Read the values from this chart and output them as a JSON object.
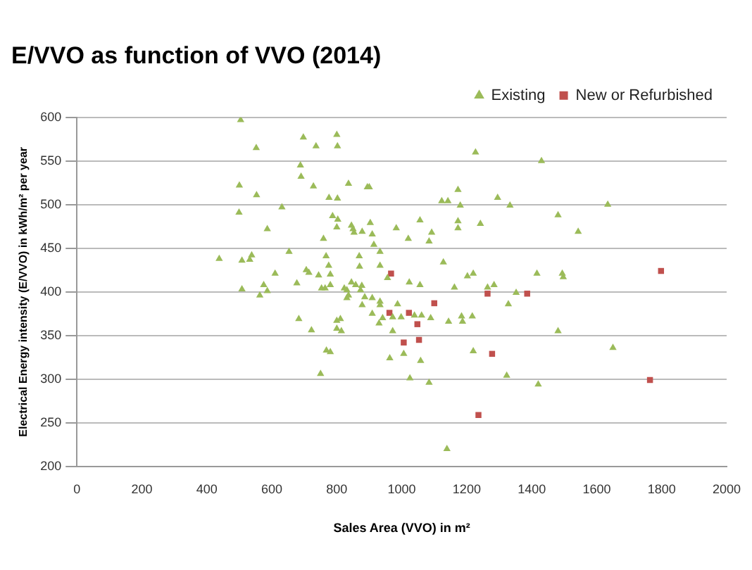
{
  "chart_data": {
    "type": "scatter",
    "title": "E/VVO as function of VVO (2014)",
    "xlabel": "Sales Area (VVO) in m²",
    "ylabel": "Electrical Energy intensity (E/VVO) in kWh/m² per year",
    "xlim": [
      0,
      2000
    ],
    "xticks": [
      0,
      200,
      400,
      600,
      800,
      1000,
      1200,
      1400,
      1600,
      1800,
      2000
    ],
    "ylim": [
      200,
      600
    ],
    "yticks": [
      200,
      250,
      300,
      350,
      400,
      450,
      500,
      550,
      600
    ],
    "grid": "y",
    "legend": "top right",
    "series": [
      {
        "name": "Existing",
        "color": "#9bbb59",
        "marker": "triangle",
        "x": [
          504,
          552,
          500,
          553,
          499,
          631,
          586,
          438,
          508,
          538,
          532,
          653,
          610,
          508,
          575,
          586,
          563,
          677,
          683,
          722,
          706,
          714,
          744,
          697,
          736,
          688,
          690,
          728,
          759,
          767,
          775,
          780,
          780,
          753,
          764,
          750,
          768,
          780,
          776,
          787,
          800,
          802,
          802,
          803,
          800,
          800,
          811,
          800,
          814,
          836,
          894,
          900,
          845,
          850,
          853,
          878,
          903,
          909,
          914,
          933,
          869,
          870,
          933,
          956,
          983,
          1020,
          1056,
          1092,
          1084,
          1128,
          1123,
          1142,
          1173,
          1180,
          1173,
          1173,
          1242,
          1227,
          1295,
          1202,
          1220,
          1264,
          1284,
          1162,
          1023,
          1056,
          845,
          858,
          877,
          873,
          823,
          831,
          836,
          831,
          886,
          909,
          933,
          933,
          878,
          987,
          909,
          941,
          930,
          972,
          998,
          1039,
          1061,
          1089,
          1144,
          1184,
          1187,
          1217,
          972,
          1006,
          963,
          1058,
          1025,
          1084,
          1220,
          1139,
          1430,
          1333,
          1481,
          1634,
          1543,
          1416,
          1494,
          1497,
          1352,
          1328,
          1481,
          1650,
          1323,
          1420
        ],
        "values": [
          597,
          565,
          522,
          511,
          491,
          497,
          472,
          438,
          436,
          442,
          437,
          446,
          421,
          403,
          408,
          401,
          396,
          410,
          369,
          356,
          425,
          422,
          419,
          577,
          567,
          545,
          532,
          521,
          461,
          441,
          430,
          420,
          408,
          404,
          404,
          306,
          333,
          331,
          508,
          487,
          580,
          567,
          507,
          483,
          474,
          367,
          369,
          358,
          355,
          524,
          520,
          520,
          476,
          472,
          468,
          469,
          479,
          466,
          454,
          446,
          441,
          429,
          430,
          416,
          473,
          461,
          482,
          468,
          458,
          434,
          504,
          504,
          517,
          499,
          481,
          473,
          478,
          560,
          508,
          418,
          421,
          405,
          408,
          405,
          411,
          408,
          411,
          408,
          407,
          402,
          404,
          402,
          396,
          393,
          394,
          393,
          389,
          385,
          385,
          386,
          375,
          370,
          364,
          371,
          371,
          373,
          373,
          370,
          366,
          372,
          366,
          372,
          355,
          329,
          324,
          321,
          301,
          296,
          332,
          220,
          550,
          499,
          488,
          500,
          469,
          421,
          421,
          417,
          399,
          386,
          355,
          336,
          304,
          294
        ]
      },
      {
        "name": "New or Refurbished",
        "color": "#c0504d",
        "marker": "square",
        "x": [
          967,
          1100,
          962,
          1022,
          1048,
          1006,
          1053,
          1264,
          1278,
          1236,
          1798,
          1386,
          1764
        ],
        "values": [
          421,
          387,
          376,
          376,
          363,
          342,
          345,
          398,
          329,
          259,
          424,
          398,
          299
        ]
      }
    ]
  }
}
